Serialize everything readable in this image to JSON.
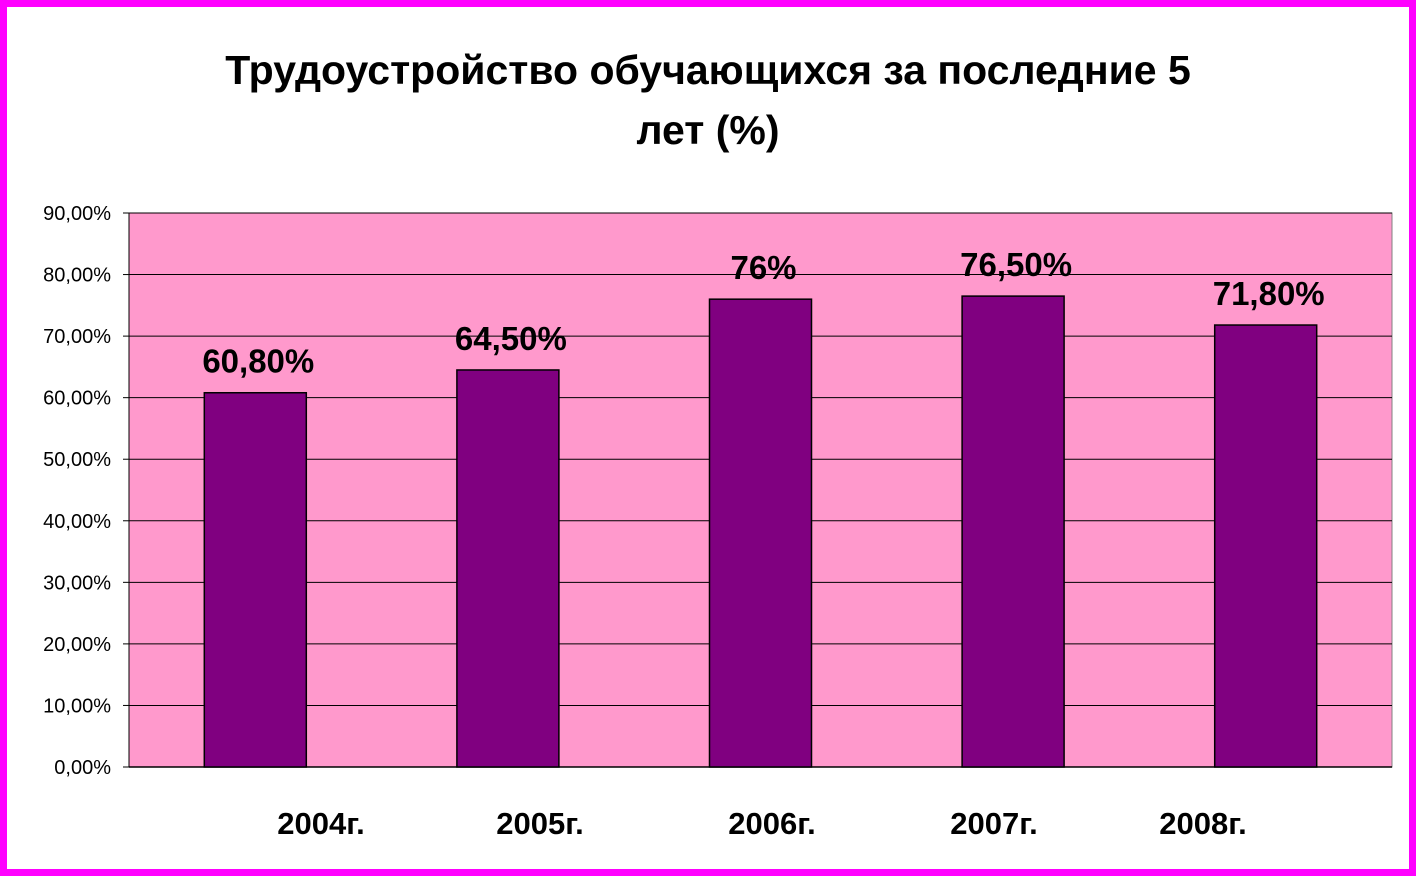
{
  "chart_data": {
    "type": "bar",
    "title_lines": [
      "Трудоустройство обучающихся за последние 5",
      "лет (%)"
    ],
    "categories": [
      "2004г.",
      "2005г.",
      "2006г.",
      "2007г.",
      "2008г."
    ],
    "values": [
      60.8,
      64.5,
      76,
      76.5,
      71.8
    ],
    "data_labels": [
      "60,80%",
      "64,50%",
      "76%",
      "76,50%",
      "71,80%"
    ],
    "y_ticks": [
      "0,00%",
      "10,00%",
      "20,00%",
      "30,00%",
      "40,00%",
      "50,00%",
      "60,00%",
      "70,00%",
      "80,00%",
      "90,00%"
    ],
    "ylim": [
      0,
      90
    ],
    "xlabel": "",
    "ylabel": "",
    "grid": true,
    "legend": "none"
  },
  "colors": {
    "frame": "#ff00ff",
    "plot_background": "#ff99cc",
    "bar_fill": "#800080",
    "gridline": "#000000"
  }
}
